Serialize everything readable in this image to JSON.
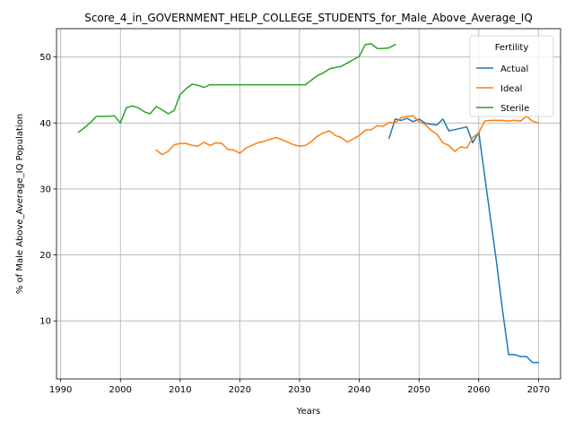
{
  "chart_data": {
    "type": "line",
    "title": "Score_4_in_GOVERNMENT_HELP_COLLEGE_STUDENTS_for_Male_Above_Average_IQ",
    "xlabel": "Years",
    "ylabel": "% of Male Above_Average_IQ Population",
    "xlim": [
      1989.3,
      2073.7
    ],
    "ylim": [
      1.2,
      54.3
    ],
    "xticks": [
      1990,
      2000,
      2010,
      2020,
      2030,
      2040,
      2050,
      2060,
      2070
    ],
    "yticks": [
      10,
      20,
      30,
      40,
      50
    ],
    "grid": true,
    "legend": {
      "title": "Fertility",
      "position": "top-right"
    },
    "series": [
      {
        "name": "Actual",
        "color": "#1f77b4",
        "x": [
          2045,
          2046,
          2047,
          2048,
          2049,
          2050,
          2051,
          2052,
          2053,
          2054,
          2055,
          2056,
          2057,
          2058,
          2059,
          2060,
          2061,
          2062,
          2063,
          2064,
          2065,
          2066,
          2067,
          2068,
          2069,
          2070
        ],
        "y": [
          37.7,
          40.6,
          40.4,
          40.7,
          40.2,
          40.6,
          40.0,
          39.8,
          39.7,
          40.6,
          38.8,
          39.0,
          39.2,
          39.4,
          37.0,
          38.6,
          32.0,
          25.3,
          18.7,
          11.5,
          4.9,
          4.9,
          4.6,
          4.6,
          3.7,
          3.7
        ]
      },
      {
        "name": "Ideal",
        "color": "#ff7f0e",
        "x": [
          2006,
          2007,
          2008,
          2009,
          2010,
          2011,
          2012,
          2013,
          2014,
          2015,
          2016,
          2017,
          2018,
          2019,
          2020,
          2021,
          2022,
          2023,
          2024,
          2025,
          2026,
          2027,
          2028,
          2029,
          2030,
          2031,
          2032,
          2033,
          2034,
          2035,
          2036,
          2037,
          2038,
          2039,
          2040,
          2041,
          2042,
          2043,
          2044,
          2045,
          2046,
          2047,
          2048,
          2049,
          2050,
          2051,
          2052,
          2053,
          2054,
          2055,
          2056,
          2057,
          2058,
          2059,
          2060,
          2061,
          2062,
          2063,
          2064,
          2065,
          2066,
          2067,
          2068,
          2069,
          2070
        ],
        "y": [
          35.9,
          35.2,
          35.7,
          36.7,
          36.9,
          36.9,
          36.6,
          36.5,
          37.1,
          36.6,
          37.0,
          36.9,
          36.0,
          35.9,
          35.4,
          36.2,
          36.6,
          37.0,
          37.2,
          37.5,
          37.8,
          37.5,
          37.1,
          36.7,
          36.5,
          36.6,
          37.2,
          38.0,
          38.5,
          38.8,
          38.1,
          37.8,
          37.1,
          37.6,
          38.1,
          38.9,
          39.0,
          39.6,
          39.5,
          40.1,
          40.0,
          40.8,
          41.0,
          41.1,
          40.2,
          39.8,
          38.9,
          38.3,
          37.0,
          36.6,
          35.7,
          36.4,
          36.2,
          37.8,
          38.5,
          40.3,
          40.4,
          40.4,
          40.4,
          40.3,
          40.4,
          40.3,
          41.0,
          40.3,
          40.0
        ]
      },
      {
        "name": "Sterile",
        "color": "#2ca02c",
        "x": [
          1993,
          1994,
          1995,
          1996,
          1997,
          1998,
          1999,
          2000,
          2001,
          2002,
          2003,
          2004,
          2005,
          2006,
          2007,
          2008,
          2009,
          2010,
          2011,
          2012,
          2013,
          2014,
          2015,
          2016,
          2017,
          2018,
          2019,
          2020,
          2021,
          2022,
          2023,
          2024,
          2025,
          2026,
          2027,
          2028,
          2029,
          2030,
          2031,
          2032,
          2033,
          2034,
          2035,
          2036,
          2037,
          2038,
          2039,
          2040,
          2041,
          2042,
          2043,
          2044,
          2045,
          2046
        ],
        "y": [
          38.6,
          39.3,
          40.1,
          41.0,
          41.0,
          41.0,
          41.1,
          40.0,
          42.3,
          42.6,
          42.3,
          41.7,
          41.4,
          42.5,
          42.0,
          41.4,
          41.9,
          44.3,
          45.2,
          45.9,
          45.7,
          45.4,
          45.8,
          45.8,
          45.8,
          45.8,
          45.8,
          45.8,
          45.8,
          45.8,
          45.8,
          45.8,
          45.8,
          45.8,
          45.8,
          45.8,
          45.8,
          45.8,
          45.8,
          46.5,
          47.2,
          47.6,
          48.2,
          48.4,
          48.6,
          49.1,
          49.6,
          50.1,
          51.9,
          52.0,
          51.3,
          51.3,
          51.4,
          51.9
        ]
      }
    ]
  }
}
